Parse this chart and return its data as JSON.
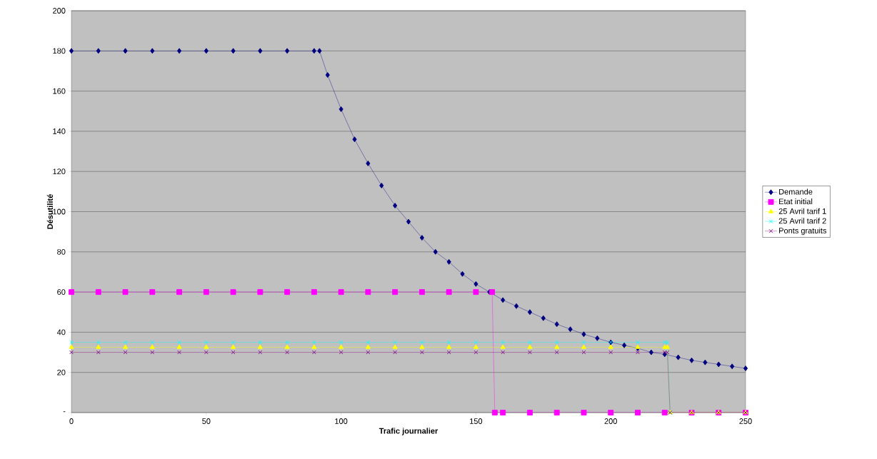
{
  "chart_data": {
    "type": "line",
    "xlabel": "Trafic journalier",
    "ylabel": "Désutilité",
    "xlim": [
      0,
      250
    ],
    "xticks": [
      0,
      50,
      100,
      150,
      200,
      250
    ],
    "ylim": [
      0,
      200
    ],
    "yticks": [
      {
        "value": 0,
        "label": "-"
      },
      20,
      40,
      60,
      80,
      100,
      120,
      140,
      160,
      180,
      200
    ],
    "grid": "y",
    "legend": "right",
    "line_style": "solid",
    "series": [
      {
        "name": "Demande",
        "color": "#000080",
        "marker": "diamond",
        "x": [
          0,
          10,
          20,
          30,
          40,
          50,
          60,
          70,
          80,
          90,
          92,
          95,
          100,
          105,
          110,
          115,
          120,
          125,
          130,
          135,
          140,
          145,
          150,
          155,
          160,
          165,
          170,
          175,
          180,
          185,
          190,
          195,
          200,
          205,
          210,
          215,
          220,
          225,
          230,
          235,
          240,
          245,
          250
        ],
        "values": [
          180,
          180,
          180,
          180,
          180,
          180,
          180,
          180,
          180,
          180,
          180,
          168,
          151,
          136,
          124,
          113,
          103,
          95,
          87,
          80,
          75,
          69,
          64,
          60,
          56,
          53,
          50,
          47,
          44,
          41.5,
          39,
          37,
          35,
          33.5,
          32,
          30,
          29,
          27.5,
          26,
          25,
          24,
          23,
          22
        ]
      },
      {
        "name": "Etat initial",
        "color": "#ff00ff",
        "marker": "square",
        "x": [
          0,
          10,
          20,
          30,
          40,
          50,
          60,
          70,
          80,
          90,
          100,
          110,
          120,
          130,
          140,
          150,
          156,
          157,
          160,
          170,
          180,
          190,
          200,
          210,
          220,
          230,
          240,
          250
        ],
        "values": [
          60,
          60,
          60,
          60,
          60,
          60,
          60,
          60,
          60,
          60,
          60,
          60,
          60,
          60,
          60,
          60,
          60,
          0,
          0,
          0,
          0,
          0,
          0,
          0,
          0,
          0,
          0,
          0
        ]
      },
      {
        "name": "25 Avril tarif 1",
        "color": "#ffff00",
        "marker": "triangle",
        "x": [
          0,
          10,
          20,
          30,
          40,
          50,
          60,
          70,
          80,
          90,
          100,
          110,
          120,
          130,
          140,
          150,
          160,
          170,
          180,
          190,
          200,
          210,
          220,
          221,
          222,
          230,
          240,
          250
        ],
        "values": [
          32.5,
          32.5,
          32.5,
          32.5,
          32.5,
          32.5,
          32.5,
          32.5,
          32.5,
          32.5,
          32.5,
          32.5,
          32.5,
          32.5,
          32.5,
          32.5,
          32.5,
          32.5,
          32.5,
          32.5,
          32.5,
          32.5,
          32.5,
          32.5,
          0,
          0,
          0,
          0
        ]
      },
      {
        "name": "25 Avril tarif 2",
        "color": "#00ffff",
        "marker": "cross",
        "x": [
          0,
          10,
          20,
          30,
          40,
          50,
          60,
          70,
          80,
          90,
          100,
          110,
          120,
          130,
          140,
          150,
          160,
          170,
          180,
          190,
          200,
          210,
          220,
          221,
          222
        ],
        "values": [
          35,
          35,
          35,
          35,
          35,
          35,
          35,
          35,
          35,
          35,
          35,
          35,
          35,
          35,
          35,
          35,
          35,
          35,
          35,
          35,
          35,
          35,
          35,
          35,
          0
        ]
      },
      {
        "name": "Ponts gratuits",
        "color": "#800080",
        "marker": "cross",
        "x": [
          0,
          10,
          20,
          30,
          40,
          50,
          60,
          70,
          80,
          90,
          100,
          110,
          120,
          130,
          140,
          150,
          160,
          170,
          180,
          190,
          200,
          210,
          220,
          221,
          222,
          230,
          240,
          250
        ],
        "values": [
          30,
          30,
          30,
          30,
          30,
          30,
          30,
          30,
          30,
          30,
          30,
          30,
          30,
          30,
          30,
          30,
          30,
          30,
          30,
          30,
          30,
          30,
          30,
          30,
          0,
          0,
          0,
          0
        ]
      }
    ]
  }
}
